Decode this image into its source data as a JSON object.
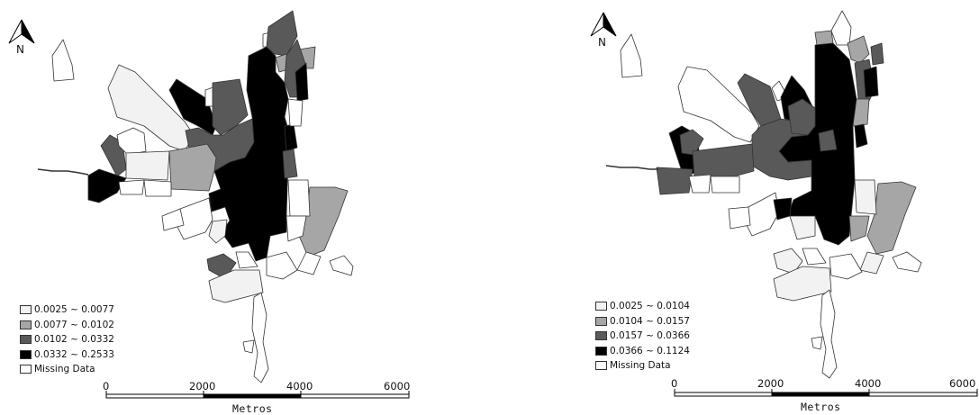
{
  "maps": [
    {
      "north_label": "N",
      "legend": [
        {
          "label": "0.0025 ~ 0.0077",
          "color": "#f2f2f2"
        },
        {
          "label": "0.0077 ~ 0.0102",
          "color": "#a6a6a6"
        },
        {
          "label": "0.0102 ~ 0.0332",
          "color": "#595959"
        },
        {
          "label": "0.0332 ~ 0.2533",
          "color": "#000000"
        },
        {
          "label": "Missing Data",
          "color": "#ffffff"
        }
      ],
      "scale_ticks": [
        "0",
        "2000",
        "4000",
        "6000"
      ],
      "scale_unit": "Metros"
    },
    {
      "north_label": "N",
      "legend": [
        {
          "label": "0.0025 ~ 0.0104",
          "color": "#f2f2f2"
        },
        {
          "label": "0.0104 ~ 0.0157",
          "color": "#a6a6a6"
        },
        {
          "label": "0.0157 ~ 0.0366",
          "color": "#595959"
        },
        {
          "label": "0.0366 ~ 0.1124",
          "color": "#000000"
        },
        {
          "label": "Missing Data",
          "color": "#ffffff"
        }
      ],
      "scale_ticks": [
        "0",
        "2000",
        "4000",
        "6000"
      ],
      "scale_unit": "Metros"
    }
  ]
}
